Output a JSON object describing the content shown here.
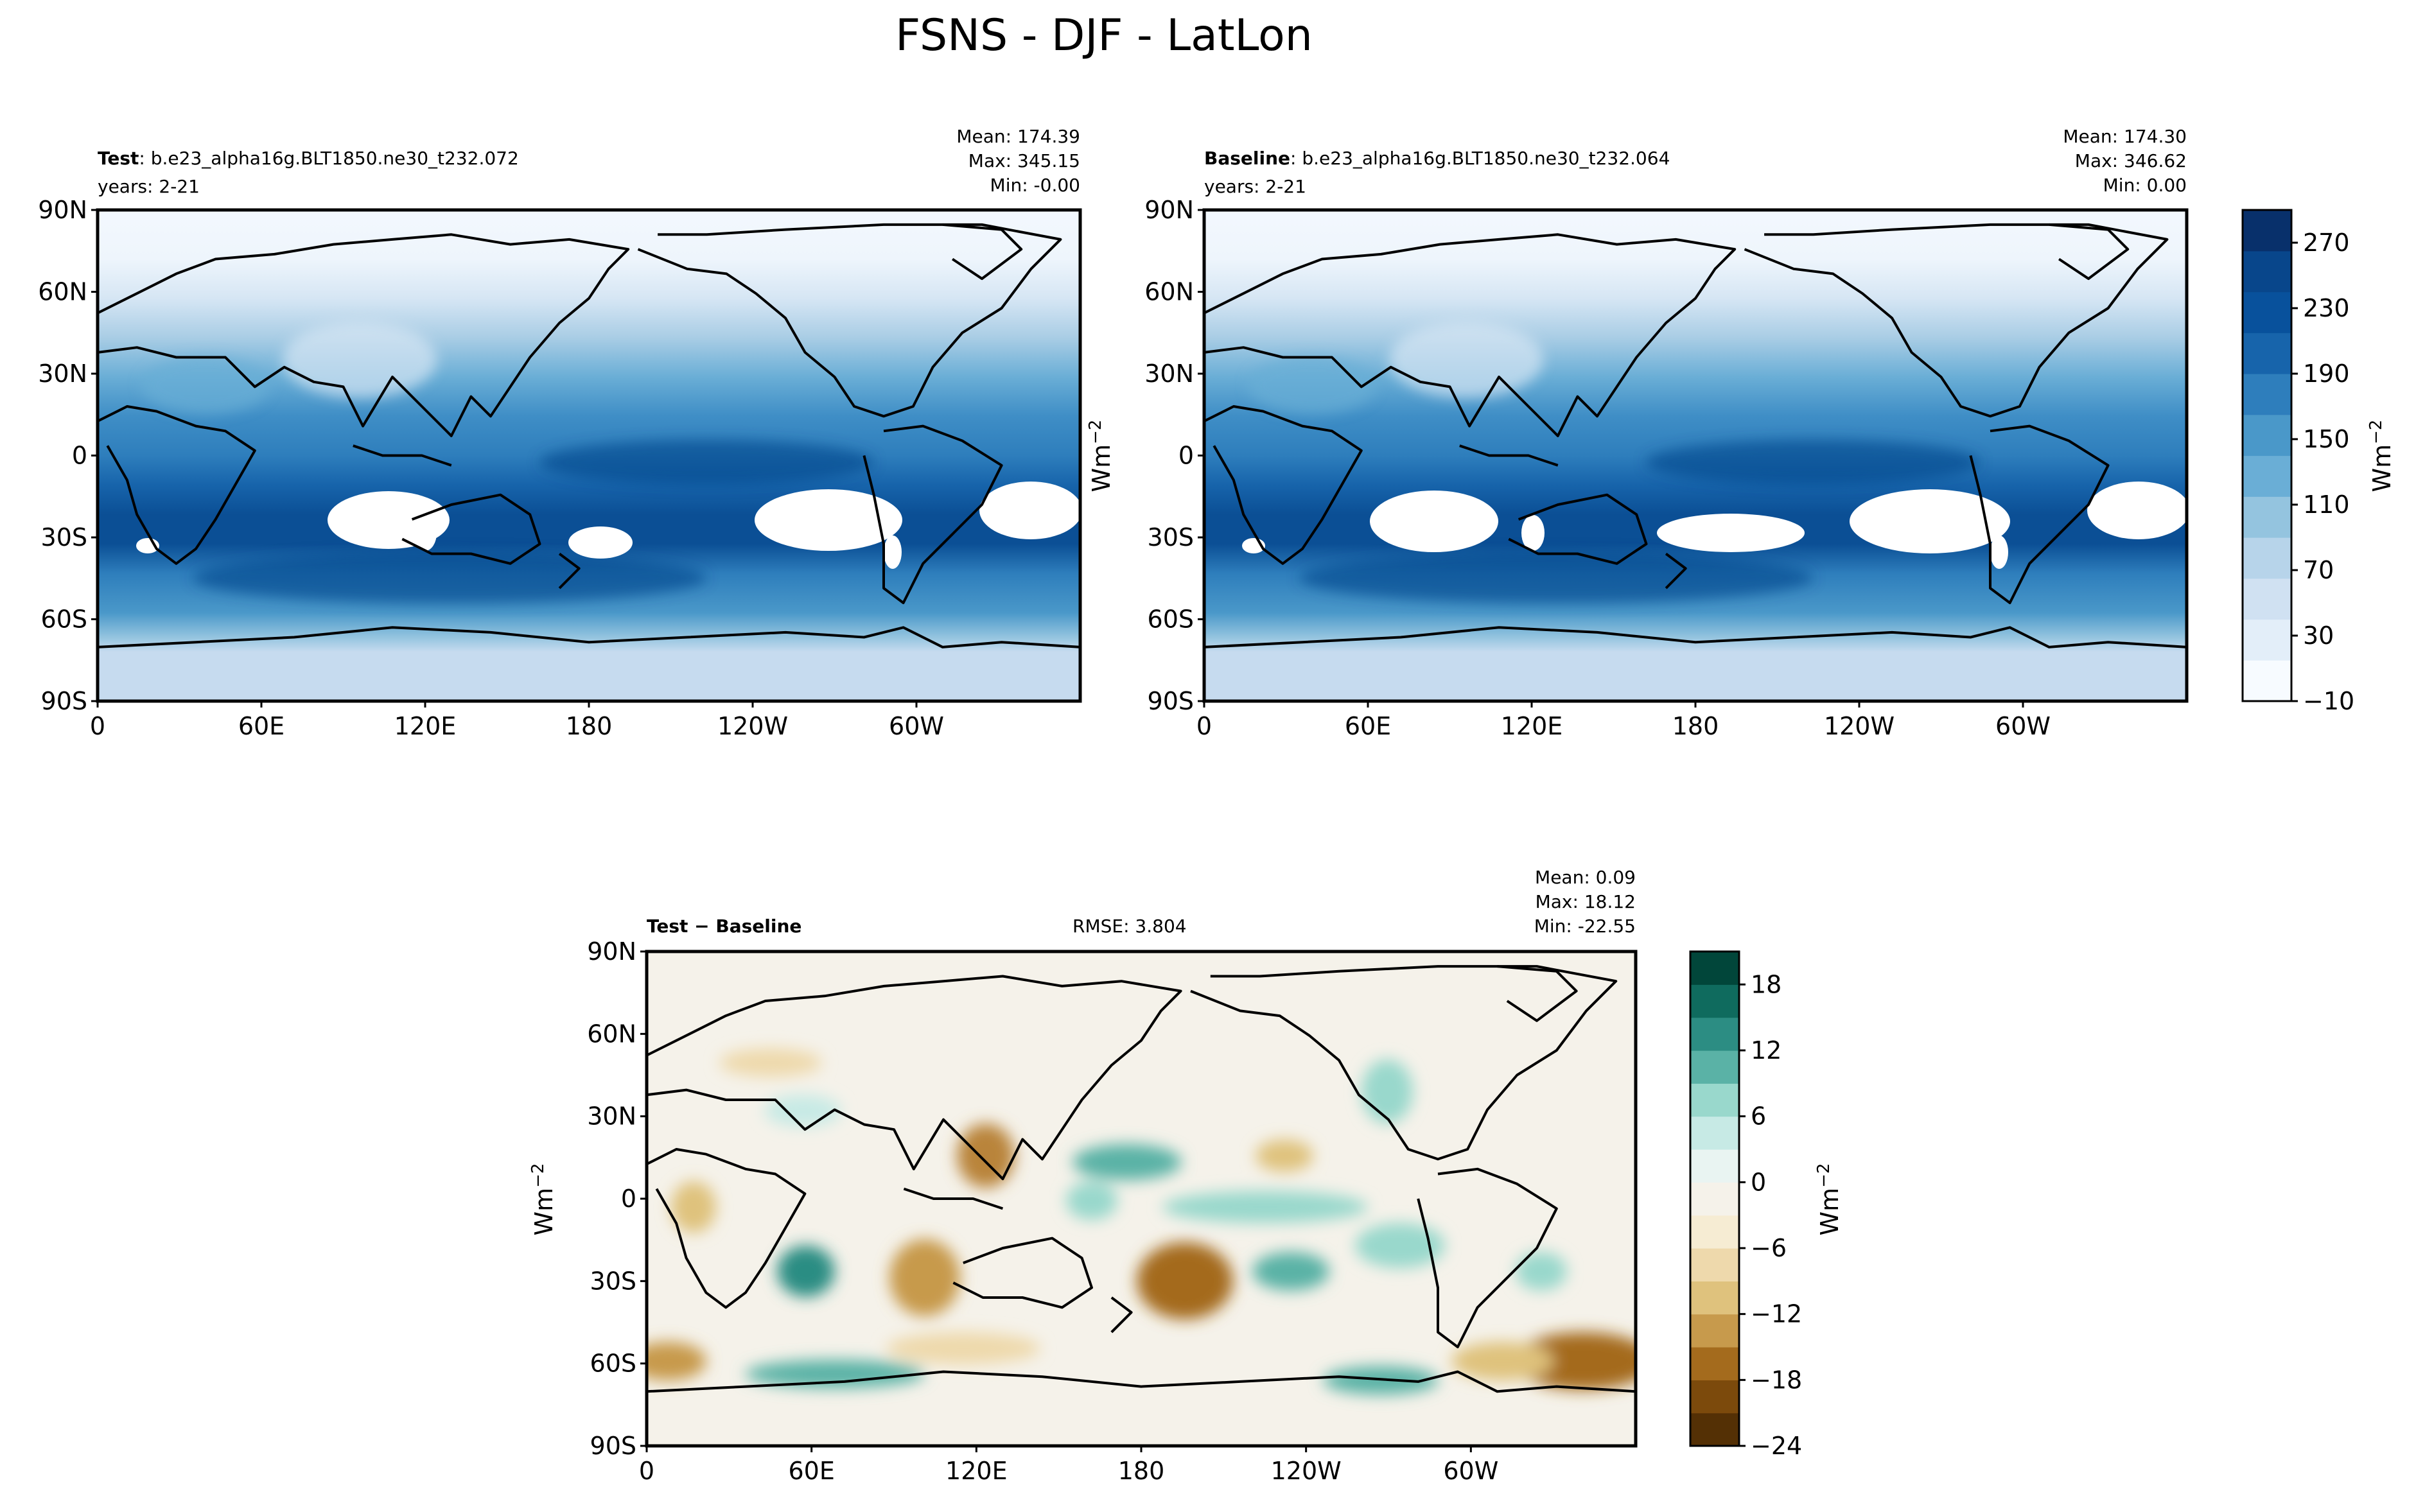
{
  "title": "FSNS - DJF - LatLon",
  "lat_ticks": [
    "90N",
    "60N",
    "30N",
    "0",
    "30S",
    "60S",
    "90S"
  ],
  "lon_ticks": [
    "0",
    "60E",
    "120E",
    "180",
    "120W",
    "60W"
  ],
  "units_label": "Wm",
  "units_exp": "−2",
  "panels": [
    {
      "id": "test",
      "title_bold": "Test",
      "title_rest": ": b.e23_alpha16g.BLT1850.ne30_t232.072",
      "years": "years: 2-21",
      "stats": [
        "Mean: 174.39",
        "Max: 345.15",
        "Min: -0.00"
      ]
    },
    {
      "id": "baseline",
      "title_bold": "Baseline",
      "title_rest": ": b.e23_alpha16g.BLT1850.ne30_t232.064",
      "years": "years: 2-21",
      "stats": [
        "Mean: 174.30",
        "Max: 346.62",
        "Min:  0.00"
      ]
    },
    {
      "id": "diff",
      "title_bold": "Test − Baseline",
      "rmse": "RMSE: 3.804",
      "stats": [
        "Mean:  0.09",
        "Max: 18.12",
        "Min: -22.55"
      ]
    }
  ],
  "colorbars": {
    "seq": {
      "ticks": [
        "270",
        "230",
        "190",
        "150",
        "110",
        "70",
        "30",
        "−10"
      ],
      "tick_values": [
        270,
        230,
        190,
        150,
        110,
        70,
        30,
        -10
      ],
      "range": [
        -10,
        290
      ],
      "colors": [
        "#f7fbff",
        "#e3eef9",
        "#d0e1f2",
        "#b7d4ea",
        "#94c4df",
        "#6aaed6",
        "#4a98c9",
        "#2e7ebc",
        "#1764ab",
        "#08519c",
        "#08468b",
        "#08306b"
      ]
    },
    "div": {
      "ticks": [
        "18",
        "12",
        "6",
        "0",
        "−6",
        "−12",
        "−18",
        "−24"
      ],
      "tick_values": [
        18,
        12,
        6,
        0,
        -6,
        -12,
        -18,
        -24
      ],
      "range": [
        -24,
        21
      ],
      "colors": [
        "#543005",
        "#7c4a0c",
        "#a46b1d",
        "#c79a4c",
        "#dfc27d",
        "#eed9ac",
        "#f6ecd3",
        "#f5f2ea",
        "#e9f4f2",
        "#c7eae5",
        "#99d8cc",
        "#5ab2a6",
        "#2c8d83",
        "#0f6b5e",
        "#01463a"
      ]
    }
  },
  "chart_data": [
    {
      "type": "heatmap",
      "title": "Test: b.e23_alpha16g.BLT1850.ne30_t232.072",
      "subtitle": "years: 2-21",
      "variable": "FSNS",
      "season": "DJF",
      "units": "Wm^-2",
      "mean": 174.39,
      "max": 345.15,
      "min": -0.0,
      "xlim": [
        0,
        360
      ],
      "ylim": [
        -90,
        90
      ],
      "colorbar_range": [
        -10,
        290
      ]
    },
    {
      "type": "heatmap",
      "title": "Baseline: b.e23_alpha16g.BLT1850.ne30_t232.064",
      "subtitle": "years: 2-21",
      "variable": "FSNS",
      "season": "DJF",
      "units": "Wm^-2",
      "mean": 174.3,
      "max": 346.62,
      "min": 0.0,
      "xlim": [
        0,
        360
      ],
      "ylim": [
        -90,
        90
      ],
      "colorbar_range": [
        -10,
        290
      ]
    },
    {
      "type": "heatmap",
      "title": "Test − Baseline",
      "rmse": 3.804,
      "units": "Wm^-2",
      "mean": 0.09,
      "max": 18.12,
      "min": -22.55,
      "xlim": [
        0,
        360
      ],
      "ylim": [
        -90,
        90
      ],
      "colorbar_range": [
        -24,
        21
      ]
    }
  ]
}
